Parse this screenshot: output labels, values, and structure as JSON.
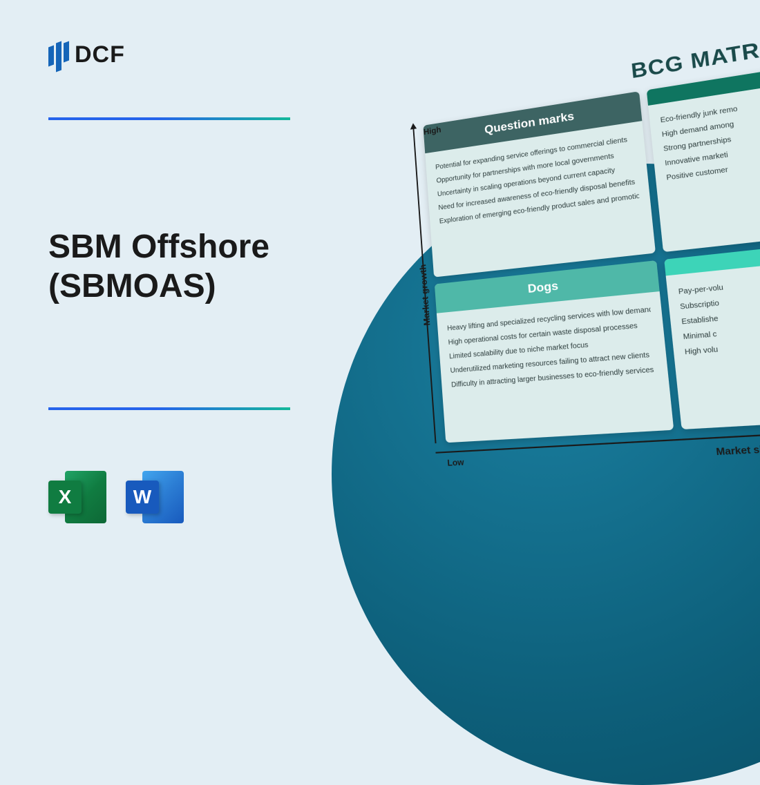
{
  "logo": {
    "text": "DCF"
  },
  "title": "SBM Offshore\n(SBMOAS)",
  "icons": {
    "excel": "X",
    "word": "W"
  },
  "matrix": {
    "title": "BCG MATRIX",
    "y_axis": "Market growth",
    "x_axis": "Market share",
    "y_high": "High",
    "y_low": "Low",
    "quadrants": {
      "question_marks": {
        "title": "Question marks",
        "header_color": "#3d6463",
        "items": [
          "Potential for expanding service offerings to commercial clients",
          "Opportunity for partnerships with more local governments",
          "Uncertainty in scaling operations beyond current capacity",
          "Need for increased awareness of eco-friendly disposal benefits",
          "Exploration of emerging eco-friendly product sales and promotions"
        ]
      },
      "stars": {
        "title": "",
        "header_color": "#0f7560",
        "items": [
          "Eco-friendly junk remo",
          "High demand among",
          "Strong partnerships",
          "Innovative marketi",
          "Positive customer"
        ]
      },
      "dogs": {
        "title": "Dogs",
        "header_color": "#4fb8a8",
        "items": [
          "Heavy lifting and specialized recycling services with low demand",
          "High operational costs for certain waste disposal processes",
          "Limited scalability due to niche market focus",
          "Underutilized marketing resources failing to attract new clients",
          "Difficulty in attracting larger businesses to eco-friendly services"
        ]
      },
      "cash_cows": {
        "title": "",
        "header_color": "#3dd4b8",
        "items": [
          "Pay-per-volu",
          "Subscriptio",
          "Establishe",
          "Minimal c",
          "High volu"
        ]
      }
    }
  },
  "colors": {
    "page_bg": "#e3eef4",
    "divider_gradient": [
      "#2563eb",
      "#14b89a"
    ],
    "circle_gradient": [
      "#1a7fa0",
      "#0a4d63"
    ]
  }
}
